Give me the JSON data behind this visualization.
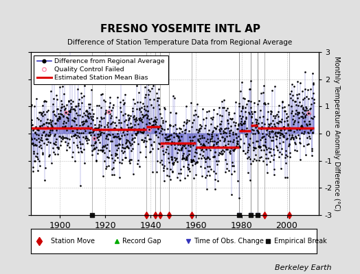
{
  "title": "FRESNO YOSEMITE INTL AP",
  "subtitle": "Difference of Station Temperature Data from Regional Average",
  "ylabel": "Monthly Temperature Anomaly Difference (°C)",
  "xlabel_years": [
    1900,
    1920,
    1940,
    1960,
    1980,
    2000
  ],
  "xlim": [
    1887,
    2014
  ],
  "ylim": [
    -3,
    3
  ],
  "yticks": [
    -3,
    -2,
    -1,
    0,
    1,
    2,
    3
  ],
  "background_color": "#e0e0e0",
  "plot_bg_color": "#ffffff",
  "seed": 42,
  "station_moves": [
    1938,
    1942,
    1944,
    1948,
    1958,
    1990,
    2001
  ],
  "record_gaps": [],
  "time_obs_changes": [
    1979,
    1984,
    1987
  ],
  "empirical_breaks": [
    1914,
    1979,
    1984,
    1987
  ],
  "bias_segments": [
    {
      "x_start": 1887,
      "x_end": 1914,
      "bias": 0.2
    },
    {
      "x_start": 1914,
      "x_end": 1938,
      "bias": 0.15
    },
    {
      "x_start": 1938,
      "x_end": 1944,
      "bias": 0.25
    },
    {
      "x_start": 1944,
      "x_end": 1960,
      "bias": -0.35
    },
    {
      "x_start": 1960,
      "x_end": 1979,
      "bias": -0.5
    },
    {
      "x_start": 1979,
      "x_end": 1984,
      "bias": 0.1
    },
    {
      "x_start": 1984,
      "x_end": 1987,
      "bias": 0.3
    },
    {
      "x_start": 1987,
      "x_end": 2012,
      "bias": 0.2
    }
  ],
  "data_color": "#3333bb",
  "data_alpha": 0.6,
  "bias_color": "#dd0000",
  "station_move_color": "#cc0000",
  "record_gap_color": "#00aa00",
  "time_obs_color": "#3333bb",
  "empirical_break_color": "#111111",
  "qc_fail_color": "#ff88aa",
  "berkeley_earth_text": "Berkeley Earth"
}
